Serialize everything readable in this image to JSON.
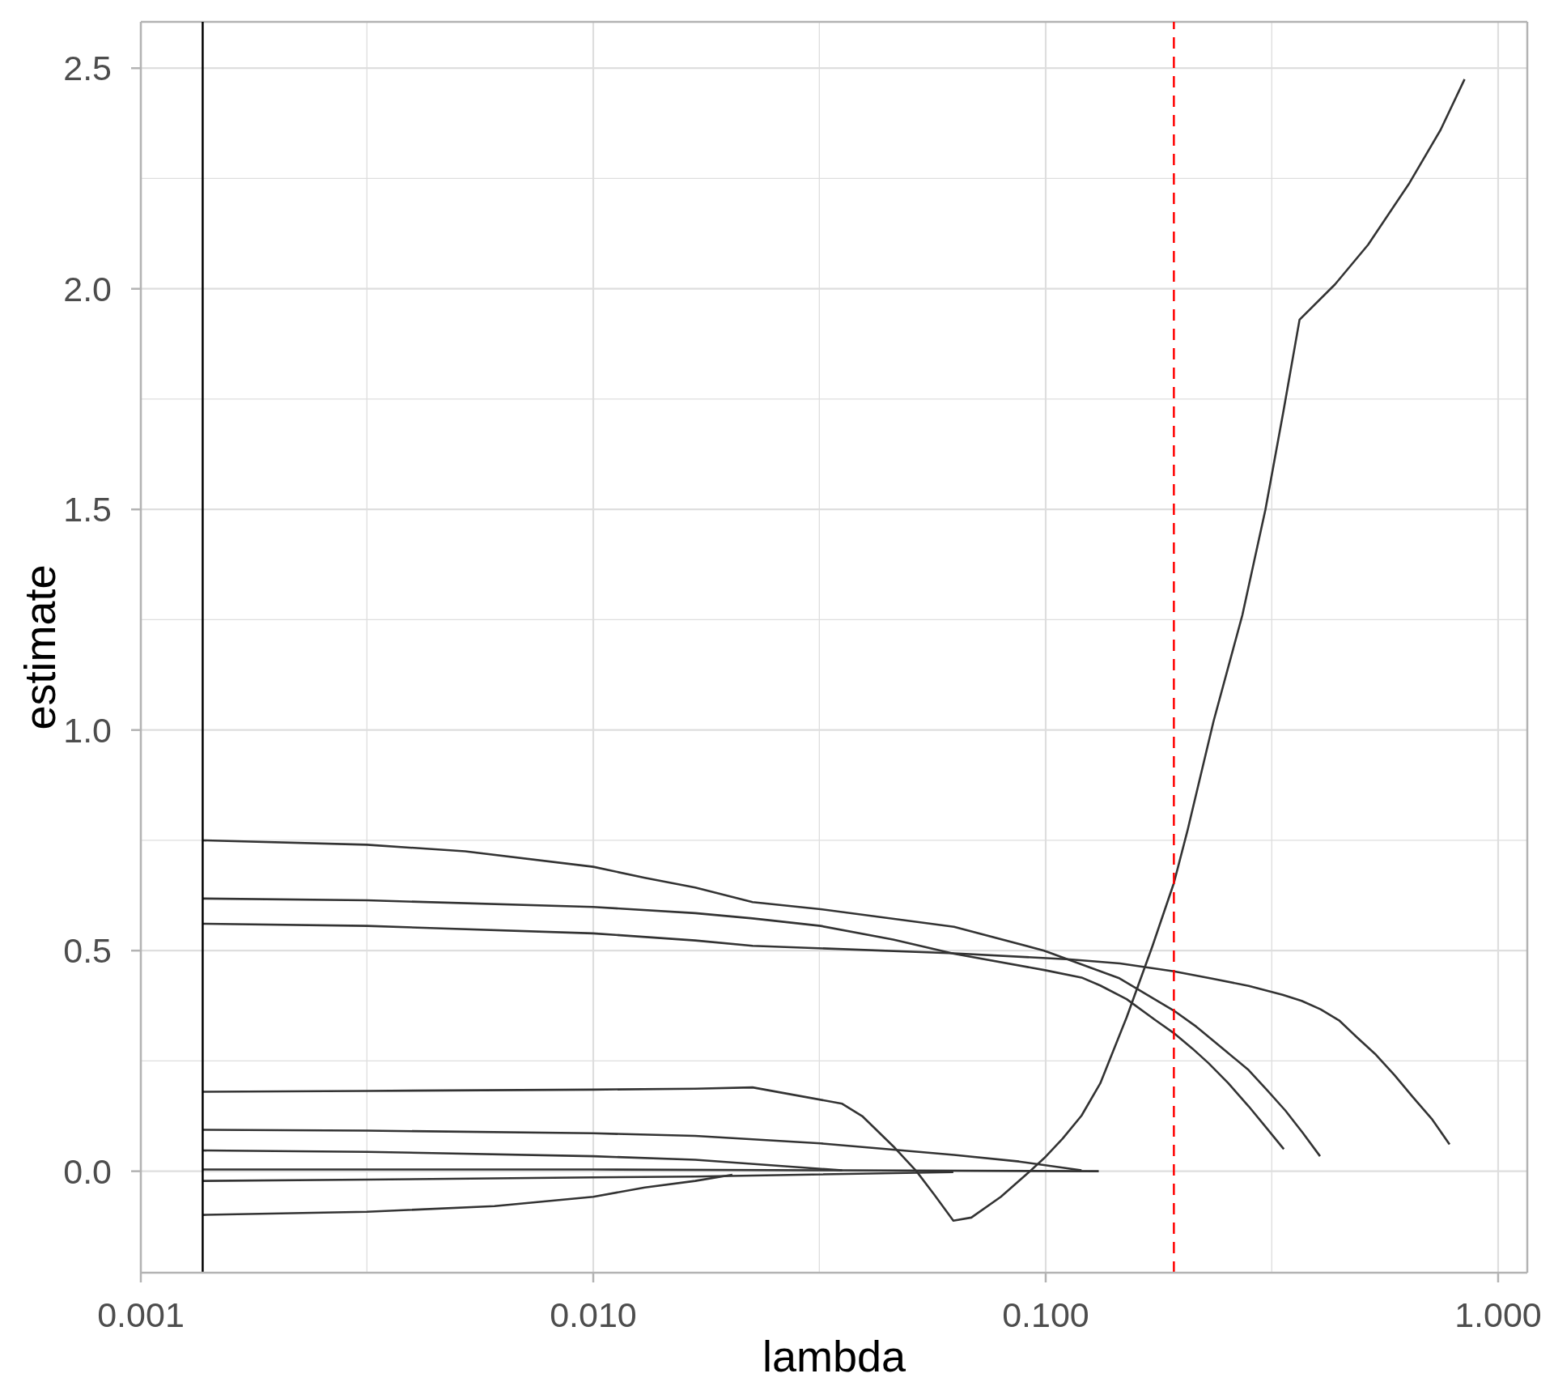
{
  "chart_data": {
    "type": "line",
    "xlabel": "lambda",
    "ylabel": "estimate",
    "log": "x",
    "grid": true,
    "xlim": [
      0.001,
      1.16
    ],
    "ylim": [
      -0.23,
      2.605
    ],
    "xticks": [
      {
        "value": 0.001,
        "label": "0.001"
      },
      {
        "value": 0.00316,
        "label": null
      },
      {
        "value": 0.01,
        "label": "0.010"
      },
      {
        "value": 0.0316,
        "label": null
      },
      {
        "value": 0.1,
        "label": "0.100"
      },
      {
        "value": 0.316,
        "label": null
      },
      {
        "value": 1,
        "label": "1.000"
      }
    ],
    "yticks": [
      {
        "value": 0,
        "label": "0.0"
      },
      {
        "value": 0.25,
        "label": null
      },
      {
        "value": 0.5,
        "label": "0.5"
      },
      {
        "value": 0.75,
        "label": null
      },
      {
        "value": 1,
        "label": "1.0"
      },
      {
        "value": 1.25,
        "label": null
      },
      {
        "value": 1.5,
        "label": "1.5"
      },
      {
        "value": 1.75,
        "label": null
      },
      {
        "value": 2,
        "label": "2.0"
      },
      {
        "value": 2.25,
        "label": null
      },
      {
        "value": 2.5,
        "label": "2.5"
      }
    ],
    "ref_lines": [
      {
        "axis": "x",
        "value": 0.00137,
        "color": "#000000"
      },
      {
        "axis": "x",
        "value": 0.192,
        "color": "#ff0000",
        "line_style": "dashed"
      }
    ],
    "series": [
      {
        "color": "#333333",
        "x": [
          0.00137,
          0.00316,
          0.01,
          0.0168,
          0.0225,
          0.0355,
          0.0393,
          0.0464,
          0.0518,
          0.0567,
          0.0625,
          0.0685,
          0.0796,
          0.0914,
          0.1,
          0.109,
          0.12,
          0.132,
          0.151,
          0.172,
          0.192,
          0.206,
          0.235,
          0.272,
          0.306,
          0.335,
          0.364,
          0.436,
          0.516,
          0.637,
          0.746,
          0.843
        ],
        "values": [
          0.18,
          0.182,
          0.185,
          0.187,
          0.19,
          0.153,
          0.125,
          0.053,
          0,
          -0.053,
          -0.112,
          -0.105,
          -0.058,
          -0.004,
          0.033,
          0.074,
          0.126,
          0.199,
          0.349,
          0.509,
          0.653,
          0.774,
          1.02,
          1.26,
          1.5,
          1.72,
          1.93,
          2.01,
          2.1,
          2.24,
          2.36,
          2.475
        ]
      },
      {
        "color": "#333333",
        "x": [
          0.00137,
          0.00316,
          0.00521,
          0.01,
          0.013,
          0.0168,
          0.0225,
          0.0318,
          0.0627,
          0.0992,
          0.145,
          0.192,
          0.215,
          0.251,
          0.281,
          0.309,
          0.339,
          0.37,
          0.404
        ],
        "values": [
          0.75,
          0.74,
          0.725,
          0.69,
          0.665,
          0.643,
          0.61,
          0.594,
          0.554,
          0.5,
          0.438,
          0.364,
          0.328,
          0.271,
          0.229,
          0.183,
          0.137,
          0.087,
          0.034
        ]
      },
      {
        "color": "#333333",
        "x": [
          0.00137,
          0.00316,
          0.01,
          0.0168,
          0.0225,
          0.0318,
          0.046,
          0.0627,
          0.0992,
          0.12,
          0.132,
          0.151,
          0.175,
          0.192,
          0.211,
          0.229,
          0.253,
          0.281,
          0.306,
          0.336
        ],
        "values": [
          0.618,
          0.614,
          0.599,
          0.585,
          0.573,
          0.556,
          0.525,
          0.493,
          0.456,
          0.439,
          0.421,
          0.39,
          0.342,
          0.313,
          0.278,
          0.245,
          0.2,
          0.147,
          0.101,
          0.05
        ]
      },
      {
        "color": "#333333",
        "x": [
          0.00137,
          0.00316,
          0.01,
          0.0168,
          0.0225,
          0.0627,
          0.113,
          0.146,
          0.192,
          0.232,
          0.281,
          0.334,
          0.368,
          0.405,
          0.445,
          0.488,
          0.537,
          0.59,
          0.648,
          0.713,
          0.781
        ],
        "values": [
          0.561,
          0.556,
          0.539,
          0.523,
          0.511,
          0.494,
          0.48,
          0.471,
          0.453,
          0.437,
          0.42,
          0.4,
          0.386,
          0.367,
          0.342,
          0.303,
          0.264,
          0.218,
          0.168,
          0.119,
          0.061
        ]
      },
      {
        "color": "#333333",
        "x": [
          0.00137,
          0.00316,
          0.01,
          0.0168,
          0.0318,
          0.046,
          0.0627,
          0.0873,
          0.12
        ],
        "values": [
          0.094,
          0.092,
          0.086,
          0.08,
          0.063,
          0.049,
          0.037,
          0.022,
          0.002
        ]
      },
      {
        "color": "#333333",
        "x": [
          0.00137,
          0.00316,
          0.01,
          0.0168,
          0.0355
        ],
        "values": [
          0.047,
          0.044,
          0.034,
          0.026,
          0.002
        ]
      },
      {
        "color": "#333333",
        "x": [
          0.00137,
          0.01,
          0.0355,
          0.131
        ],
        "values": [
          0.004,
          0.004,
          0.002,
          0
        ]
      },
      {
        "color": "#333333",
        "x": [
          0.00137,
          0.00316,
          0.01,
          0.0168,
          0.0625
        ],
        "values": [
          -0.022,
          -0.019,
          -0.014,
          -0.012,
          -0.002
        ]
      },
      {
        "color": "#333333",
        "x": [
          0.00137,
          0.00316,
          0.00605,
          0.01,
          0.013,
          0.0168,
          0.0203
        ],
        "values": [
          -0.099,
          -0.092,
          -0.079,
          -0.058,
          -0.037,
          -0.022,
          -0.008
        ]
      }
    ]
  }
}
